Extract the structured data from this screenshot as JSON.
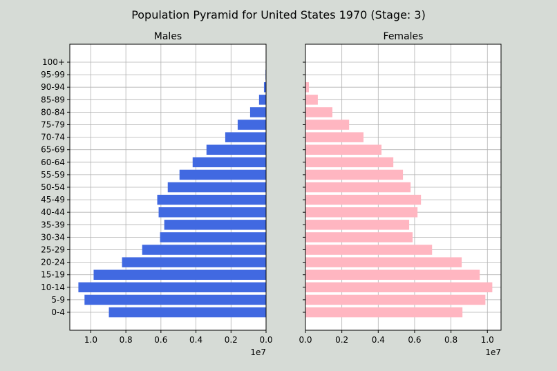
{
  "chart_data": [
    {
      "type": "bar",
      "orientation": "horizontal",
      "title": "Males",
      "color": "#4169e1",
      "reversed_x": true,
      "xlim": [
        1.12,
        0
      ],
      "x_scale_label": "1e7",
      "xticks": [
        "1.0",
        "0.8",
        "0.6",
        "0.4",
        "0.2",
        "0.0"
      ],
      "grid": true,
      "categories": [
        "0-4",
        "5-9",
        "10-14",
        "15-19",
        "20-24",
        "25-29",
        "30-34",
        "35-39",
        "40-44",
        "45-49",
        "50-54",
        "55-59",
        "60-64",
        "65-69",
        "70-74",
        "75-79",
        "80-84",
        "85-89",
        "90-94",
        "95-99",
        "100+"
      ],
      "values": [
        0.897,
        1.036,
        1.071,
        0.984,
        0.822,
        0.707,
        0.605,
        0.581,
        0.613,
        0.621,
        0.561,
        0.494,
        0.419,
        0.34,
        0.233,
        0.162,
        0.091,
        0.04,
        0.012,
        0.003,
        0.001
      ]
    },
    {
      "type": "bar",
      "orientation": "horizontal",
      "title": "Females",
      "color": "#ffb6c1",
      "xlim": [
        0,
        1.075
      ],
      "x_scale_label": "1e7",
      "xticks": [
        "0.0",
        "0.2",
        "0.4",
        "0.6",
        "0.8",
        "1.0"
      ],
      "grid": true,
      "categories": [
        "0-4",
        "5-9",
        "10-14",
        "15-19",
        "20-24",
        "25-29",
        "30-34",
        "35-39",
        "40-44",
        "45-49",
        "50-54",
        "55-59",
        "60-64",
        "65-69",
        "70-74",
        "75-79",
        "80-84",
        "85-89",
        "90-94",
        "95-99",
        "100+"
      ],
      "values": [
        0.863,
        0.989,
        1.027,
        0.958,
        0.859,
        0.696,
        0.589,
        0.57,
        0.616,
        0.635,
        0.578,
        0.536,
        0.483,
        0.418,
        0.319,
        0.24,
        0.148,
        0.068,
        0.019,
        0.002,
        0.001
      ]
    }
  ],
  "suptitle": "Population Pyramid for United States 1970 (Stage: 3)"
}
